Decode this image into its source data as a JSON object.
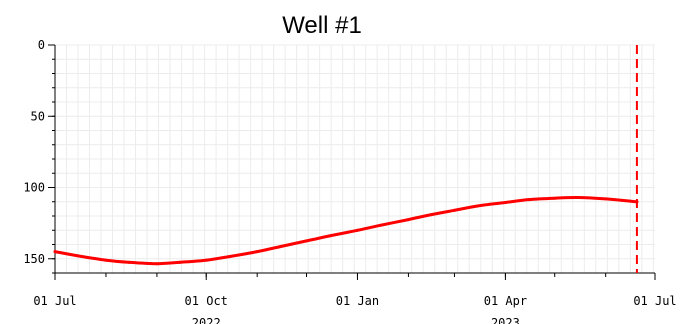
{
  "chart_data": {
    "type": "line",
    "title": "Well #1",
    "xlabel": "",
    "ylabel": "",
    "x_range": [
      "2022-07-01",
      "2023-07-01"
    ],
    "ylim": [
      160,
      0
    ],
    "y_axis_inverted": true,
    "grid": true,
    "x_ticks": [
      {
        "date": "2022-07-01",
        "label": "01 Jul",
        "sublabel": ""
      },
      {
        "date": "2022-10-01",
        "label": "01 Oct",
        "sublabel": "2022"
      },
      {
        "date": "2023-01-01",
        "label": "01 Jan",
        "sublabel": ""
      },
      {
        "date": "2023-04-01",
        "label": "01 Apr",
        "sublabel": "2023"
      },
      {
        "date": "2023-07-01",
        "label": "01 Jul",
        "sublabel": ""
      }
    ],
    "y_ticks": [
      0,
      50,
      100,
      150
    ],
    "series": [
      {
        "name": "",
        "color": "#ff0000",
        "points": [
          {
            "x": "2022-07-01",
            "y": 145
          },
          {
            "x": "2022-07-15",
            "y": 148
          },
          {
            "x": "2022-08-01",
            "y": 151
          },
          {
            "x": "2022-08-15",
            "y": 152.5
          },
          {
            "x": "2022-09-01",
            "y": 153.5
          },
          {
            "x": "2022-09-15",
            "y": 152.5
          },
          {
            "x": "2022-10-01",
            "y": 151
          },
          {
            "x": "2022-10-15",
            "y": 148.5
          },
          {
            "x": "2022-11-01",
            "y": 145
          },
          {
            "x": "2022-11-15",
            "y": 141.5
          },
          {
            "x": "2022-12-01",
            "y": 137.5
          },
          {
            "x": "2022-12-15",
            "y": 134
          },
          {
            "x": "2023-01-01",
            "y": 130
          },
          {
            "x": "2023-01-15",
            "y": 126.5
          },
          {
            "x": "2023-02-01",
            "y": 122.5
          },
          {
            "x": "2023-02-15",
            "y": 119
          },
          {
            "x": "2023-03-01",
            "y": 116
          },
          {
            "x": "2023-03-15",
            "y": 113
          },
          {
            "x": "2023-04-01",
            "y": 110.5
          },
          {
            "x": "2023-04-15",
            "y": 108.5
          },
          {
            "x": "2023-05-01",
            "y": 107.5
          },
          {
            "x": "2023-05-15",
            "y": 107
          },
          {
            "x": "2023-06-01",
            "y": 108
          },
          {
            "x": "2023-06-20",
            "y": 110
          }
        ]
      }
    ],
    "marker_line": {
      "date": "2023-06-20",
      "color": "#ff0000",
      "style": "dashed"
    }
  }
}
